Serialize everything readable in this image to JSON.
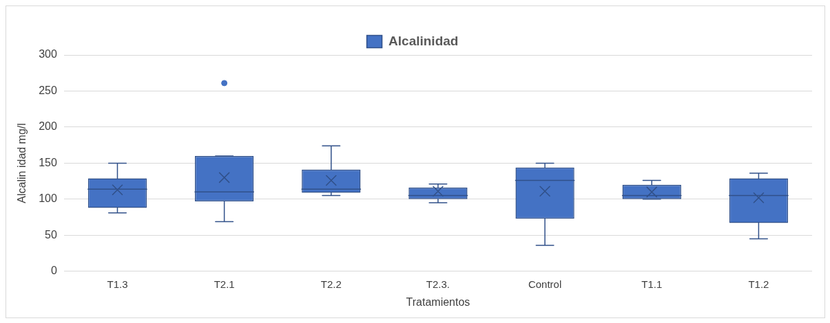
{
  "chart_data": {
    "type": "box",
    "xlabel": "Tratamientos",
    "ylabel": "Alcalin idad mg/l",
    "categories": [
      "T1.3",
      "T2.1",
      "T2.2",
      "T2.3.",
      "Control",
      "T1.1",
      "T1.2"
    ],
    "series": [
      {
        "name": "Alcalinidad",
        "color": "#4472c4",
        "boxes": [
          {
            "low": 81,
            "q1": 88,
            "median": 114,
            "q3": 129,
            "high": 150,
            "mean": 113
          },
          {
            "low": 69,
            "q1": 97,
            "median": 110,
            "q3": 160,
            "high": 160,
            "mean": 130,
            "outliers": [
              261
            ]
          },
          {
            "low": 105,
            "q1": 109,
            "median": 114,
            "q3": 141,
            "high": 174,
            "mean": 126
          },
          {
            "low": 95,
            "q1": 100,
            "median": 105,
            "q3": 116,
            "high": 121,
            "mean": 111
          },
          {
            "low": 36,
            "q1": 73,
            "median": 126,
            "q3": 144,
            "high": 150,
            "mean": 111
          },
          {
            "low": 100,
            "q1": 100,
            "median": 105,
            "q3": 120,
            "high": 126,
            "mean": 110
          },
          {
            "low": 45,
            "q1": 67,
            "median": 105,
            "q3": 129,
            "high": 136,
            "mean": 102
          }
        ]
      }
    ],
    "ylim": [
      0,
      300
    ],
    "yticks": [
      0,
      50,
      100,
      150,
      200,
      250,
      300
    ],
    "grid": "y",
    "legend": "top"
  }
}
